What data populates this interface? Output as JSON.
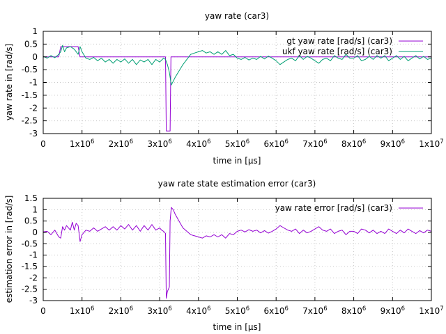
{
  "chart_data": [
    {
      "type": "line",
      "title": "yaw rate (car3)",
      "xlabel": "time in [µs]",
      "ylabel": "yaw rate in [rad/s]",
      "xlim": [
        0,
        10000000
      ],
      "ylim": [
        -3,
        1
      ],
      "x_ticks": [
        0,
        1000000,
        2000000,
        3000000,
        4000000,
        5000000,
        6000000,
        7000000,
        8000000,
        9000000,
        10000000
      ],
      "x_tick_labels": [
        "0",
        "1x10^6",
        "2x10^6",
        "3x10^6",
        "4x10^6",
        "5x10^6",
        "6x10^6",
        "7x10^6",
        "8x10^6",
        "9x10^6",
        "1x10^7"
      ],
      "y_ticks": [
        -3,
        -2.5,
        -2,
        -1.5,
        -1,
        -0.5,
        0,
        0.5,
        1
      ],
      "y_tick_labels": [
        "-3",
        "-2.5",
        "-2",
        "-1.5",
        "-1",
        "-0.5",
        "0",
        "0.5",
        "1"
      ],
      "grid": true,
      "legend_position": "top-right",
      "series": [
        {
          "name": "gt yaw rate [rad/s] (car3)",
          "color": "#9400d3",
          "points": [
            [
              0,
              0
            ],
            [
              400000,
              0
            ],
            [
              450000,
              0.4
            ],
            [
              900000,
              0.4
            ],
            [
              950000,
              0
            ],
            [
              3150000,
              0
            ],
            [
              3170000,
              -2.9
            ],
            [
              3270000,
              -2.9
            ],
            [
              3290000,
              0
            ],
            [
              10000000,
              0
            ]
          ]
        },
        {
          "name": "ukf yaw rate [rad/s] (car3)",
          "color": "#009e73",
          "points": [
            [
              0,
              0.02
            ],
            [
              100000,
              -0.05
            ],
            [
              200000,
              0.05
            ],
            [
              300000,
              -0.03
            ],
            [
              400000,
              0.1
            ],
            [
              450000,
              0.2
            ],
            [
              500000,
              0.45
            ],
            [
              550000,
              0.2
            ],
            [
              600000,
              0.35
            ],
            [
              700000,
              0.4
            ],
            [
              800000,
              0.3
            ],
            [
              900000,
              0.1
            ],
            [
              950000,
              0.4
            ],
            [
              1000000,
              0.2
            ],
            [
              1100000,
              -0.05
            ],
            [
              1200000,
              -0.1
            ],
            [
              1300000,
              -0.02
            ],
            [
              1400000,
              -0.15
            ],
            [
              1500000,
              -0.05
            ],
            [
              1600000,
              -0.2
            ],
            [
              1700000,
              -0.1
            ],
            [
              1800000,
              -0.25
            ],
            [
              1900000,
              -0.1
            ],
            [
              2000000,
              -0.2
            ],
            [
              2100000,
              -0.08
            ],
            [
              2200000,
              -0.25
            ],
            [
              2300000,
              -0.1
            ],
            [
              2400000,
              -0.3
            ],
            [
              2500000,
              -0.12
            ],
            [
              2600000,
              -0.2
            ],
            [
              2700000,
              -0.1
            ],
            [
              2800000,
              -0.3
            ],
            [
              2900000,
              -0.1
            ],
            [
              3000000,
              -0.2
            ],
            [
              3100000,
              -0.05
            ],
            [
              3150000,
              -0.1
            ],
            [
              3200000,
              -0.3
            ],
            [
              3250000,
              -0.6
            ],
            [
              3300000,
              -1.1
            ],
            [
              3350000,
              -0.95
            ],
            [
              3400000,
              -0.8
            ],
            [
              3500000,
              -0.55
            ],
            [
              3600000,
              -0.3
            ],
            [
              3700000,
              -0.1
            ],
            [
              3800000,
              0.1
            ],
            [
              3900000,
              0.15
            ],
            [
              4000000,
              0.2
            ],
            [
              4100000,
              0.25
            ],
            [
              4200000,
              0.15
            ],
            [
              4300000,
              0.2
            ],
            [
              4400000,
              0.1
            ],
            [
              4500000,
              0.2
            ],
            [
              4600000,
              0.1
            ],
            [
              4700000,
              0.25
            ],
            [
              4800000,
              0.05
            ],
            [
              4900000,
              0.1
            ],
            [
              5000000,
              -0.05
            ],
            [
              5100000,
              -0.1
            ],
            [
              5200000,
              -0.02
            ],
            [
              5300000,
              -0.12
            ],
            [
              5400000,
              -0.05
            ],
            [
              5500000,
              -0.1
            ],
            [
              5600000,
              0.02
            ],
            [
              5700000,
              -0.08
            ],
            [
              5800000,
              0.03
            ],
            [
              5900000,
              -0.05
            ],
            [
              6000000,
              -0.15
            ],
            [
              6100000,
              -0.3
            ],
            [
              6200000,
              -0.2
            ],
            [
              6300000,
              -0.1
            ],
            [
              6400000,
              -0.05
            ],
            [
              6500000,
              -0.15
            ],
            [
              6600000,
              0.05
            ],
            [
              6700000,
              -0.1
            ],
            [
              6800000,
              0.02
            ],
            [
              6900000,
              -0.05
            ],
            [
              7000000,
              -0.15
            ],
            [
              7100000,
              -0.25
            ],
            [
              7200000,
              -0.1
            ],
            [
              7300000,
              -0.05
            ],
            [
              7400000,
              -0.15
            ],
            [
              7500000,
              0.05
            ],
            [
              7600000,
              -0.05
            ],
            [
              7700000,
              -0.1
            ],
            [
              7800000,
              0.1
            ],
            [
              7900000,
              -0.05
            ],
            [
              8000000,
              -0.05
            ],
            [
              8100000,
              0.05
            ],
            [
              8200000,
              -0.15
            ],
            [
              8300000,
              -0.1
            ],
            [
              8400000,
              0.02
            ],
            [
              8500000,
              -0.1
            ],
            [
              8600000,
              0.05
            ],
            [
              8700000,
              -0.05
            ],
            [
              8800000,
              0.05
            ],
            [
              8900000,
              -0.15
            ],
            [
              9000000,
              -0.05
            ],
            [
              9100000,
              0.05
            ],
            [
              9200000,
              -0.1
            ],
            [
              9300000,
              0.02
            ],
            [
              9400000,
              -0.15
            ],
            [
              9500000,
              -0.05
            ],
            [
              9600000,
              0.05
            ],
            [
              9700000,
              -0.08
            ],
            [
              9800000,
              0.02
            ],
            [
              9900000,
              -0.1
            ],
            [
              10000000,
              -0.05
            ]
          ]
        }
      ]
    },
    {
      "type": "line",
      "title": "yaw rate state estimation error (car3)",
      "xlabel": "time in [µs]",
      "ylabel": "estimation error in [rad/s]",
      "xlim": [
        0,
        10000000
      ],
      "ylim": [
        -3,
        1.5
      ],
      "x_ticks": [
        0,
        1000000,
        2000000,
        3000000,
        4000000,
        5000000,
        6000000,
        7000000,
        8000000,
        9000000,
        10000000
      ],
      "x_tick_labels": [
        "0",
        "1x10^6",
        "2x10^6",
        "3x10^6",
        "4x10^6",
        "5x10^6",
        "6x10^6",
        "7x10^6",
        "8x10^6",
        "9x10^6",
        "1x10^7"
      ],
      "y_ticks": [
        -3,
        -2.5,
        -2,
        -1.5,
        -1,
        -0.5,
        0,
        0.5,
        1,
        1.5
      ],
      "y_tick_labels": [
        "-3",
        "-2.5",
        "-2",
        "-1.5",
        "-1",
        "-0.5",
        "0",
        "0.5",
        "1",
        "1.5"
      ],
      "grid": true,
      "legend_position": "top-right",
      "series": [
        {
          "name": "yaw rate error [rad/s] (car3)",
          "color": "#9400d3",
          "points": [
            [
              0,
              0.02
            ],
            [
              100000,
              0.05
            ],
            [
              200000,
              -0.1
            ],
            [
              300000,
              0.1
            ],
            [
              400000,
              -0.2
            ],
            [
              450000,
              -0.25
            ],
            [
              500000,
              0.25
            ],
            [
              550000,
              0.1
            ],
            [
              600000,
              0.3
            ],
            [
              700000,
              0.1
            ],
            [
              750000,
              0.45
            ],
            [
              800000,
              0.1
            ],
            [
              850000,
              0.4
            ],
            [
              900000,
              0.3
            ],
            [
              950000,
              -0.4
            ],
            [
              1000000,
              -0.1
            ],
            [
              1100000,
              0.1
            ],
            [
              1200000,
              0.05
            ],
            [
              1300000,
              0.2
            ],
            [
              1400000,
              0.05
            ],
            [
              1500000,
              0.15
            ],
            [
              1600000,
              0.25
            ],
            [
              1700000,
              0.1
            ],
            [
              1800000,
              0.25
            ],
            [
              1900000,
              0.1
            ],
            [
              2000000,
              0.3
            ],
            [
              2100000,
              0.15
            ],
            [
              2200000,
              0.35
            ],
            [
              2300000,
              0.1
            ],
            [
              2400000,
              0.3
            ],
            [
              2500000,
              0.05
            ],
            [
              2600000,
              0.3
            ],
            [
              2700000,
              0.1
            ],
            [
              2800000,
              0.35
            ],
            [
              2900000,
              0.1
            ],
            [
              3000000,
              0.2
            ],
            [
              3050000,
              0.1
            ],
            [
              3100000,
              0.05
            ],
            [
              3150000,
              -0.05
            ],
            [
              3170000,
              -2.9
            ],
            [
              3200000,
              -2.6
            ],
            [
              3250000,
              -2.4
            ],
            [
              3270000,
              0.5
            ],
            [
              3300000,
              1.1
            ],
            [
              3350000,
              1.0
            ],
            [
              3400000,
              0.8
            ],
            [
              3500000,
              0.5
            ],
            [
              3600000,
              0.2
            ],
            [
              3700000,
              0.05
            ],
            [
              3800000,
              -0.1
            ],
            [
              3900000,
              -0.15
            ],
            [
              4000000,
              -0.2
            ],
            [
              4100000,
              -0.25
            ],
            [
              4200000,
              -0.15
            ],
            [
              4300000,
              -0.2
            ],
            [
              4400000,
              -0.1
            ],
            [
              4500000,
              -0.2
            ],
            [
              4600000,
              -0.1
            ],
            [
              4700000,
              -0.25
            ],
            [
              4800000,
              -0.05
            ],
            [
              4900000,
              -0.1
            ],
            [
              5000000,
              0.05
            ],
            [
              5100000,
              0.1
            ],
            [
              5200000,
              0.02
            ],
            [
              5300000,
              0.12
            ],
            [
              5400000,
              0.05
            ],
            [
              5500000,
              0.1
            ],
            [
              5600000,
              -0.02
            ],
            [
              5700000,
              0.08
            ],
            [
              5800000,
              -0.03
            ],
            [
              5900000,
              0.05
            ],
            [
              6000000,
              0.15
            ],
            [
              6100000,
              0.3
            ],
            [
              6200000,
              0.2
            ],
            [
              6300000,
              0.1
            ],
            [
              6400000,
              0.05
            ],
            [
              6500000,
              0.15
            ],
            [
              6600000,
              -0.05
            ],
            [
              6700000,
              0.1
            ],
            [
              6800000,
              -0.02
            ],
            [
              6900000,
              0.05
            ],
            [
              7000000,
              0.15
            ],
            [
              7100000,
              0.25
            ],
            [
              7200000,
              0.1
            ],
            [
              7300000,
              0.05
            ],
            [
              7400000,
              0.15
            ],
            [
              7500000,
              -0.05
            ],
            [
              7600000,
              0.05
            ],
            [
              7700000,
              0.1
            ],
            [
              7800000,
              -0.1
            ],
            [
              7900000,
              0.05
            ],
            [
              8000000,
              0.05
            ],
            [
              8100000,
              -0.05
            ],
            [
              8200000,
              0.15
            ],
            [
              8300000,
              0.1
            ],
            [
              8400000,
              -0.02
            ],
            [
              8500000,
              0.1
            ],
            [
              8600000,
              -0.05
            ],
            [
              8700000,
              0.05
            ],
            [
              8800000,
              -0.05
            ],
            [
              8900000,
              0.15
            ],
            [
              9000000,
              0.05
            ],
            [
              9100000,
              -0.05
            ],
            [
              9200000,
              0.1
            ],
            [
              9300000,
              -0.02
            ],
            [
              9400000,
              0.15
            ],
            [
              9500000,
              0.05
            ],
            [
              9600000,
              -0.05
            ],
            [
              9700000,
              0.08
            ],
            [
              9800000,
              -0.02
            ],
            [
              9900000,
              0.1
            ],
            [
              10000000,
              0.05
            ]
          ]
        }
      ]
    }
  ]
}
